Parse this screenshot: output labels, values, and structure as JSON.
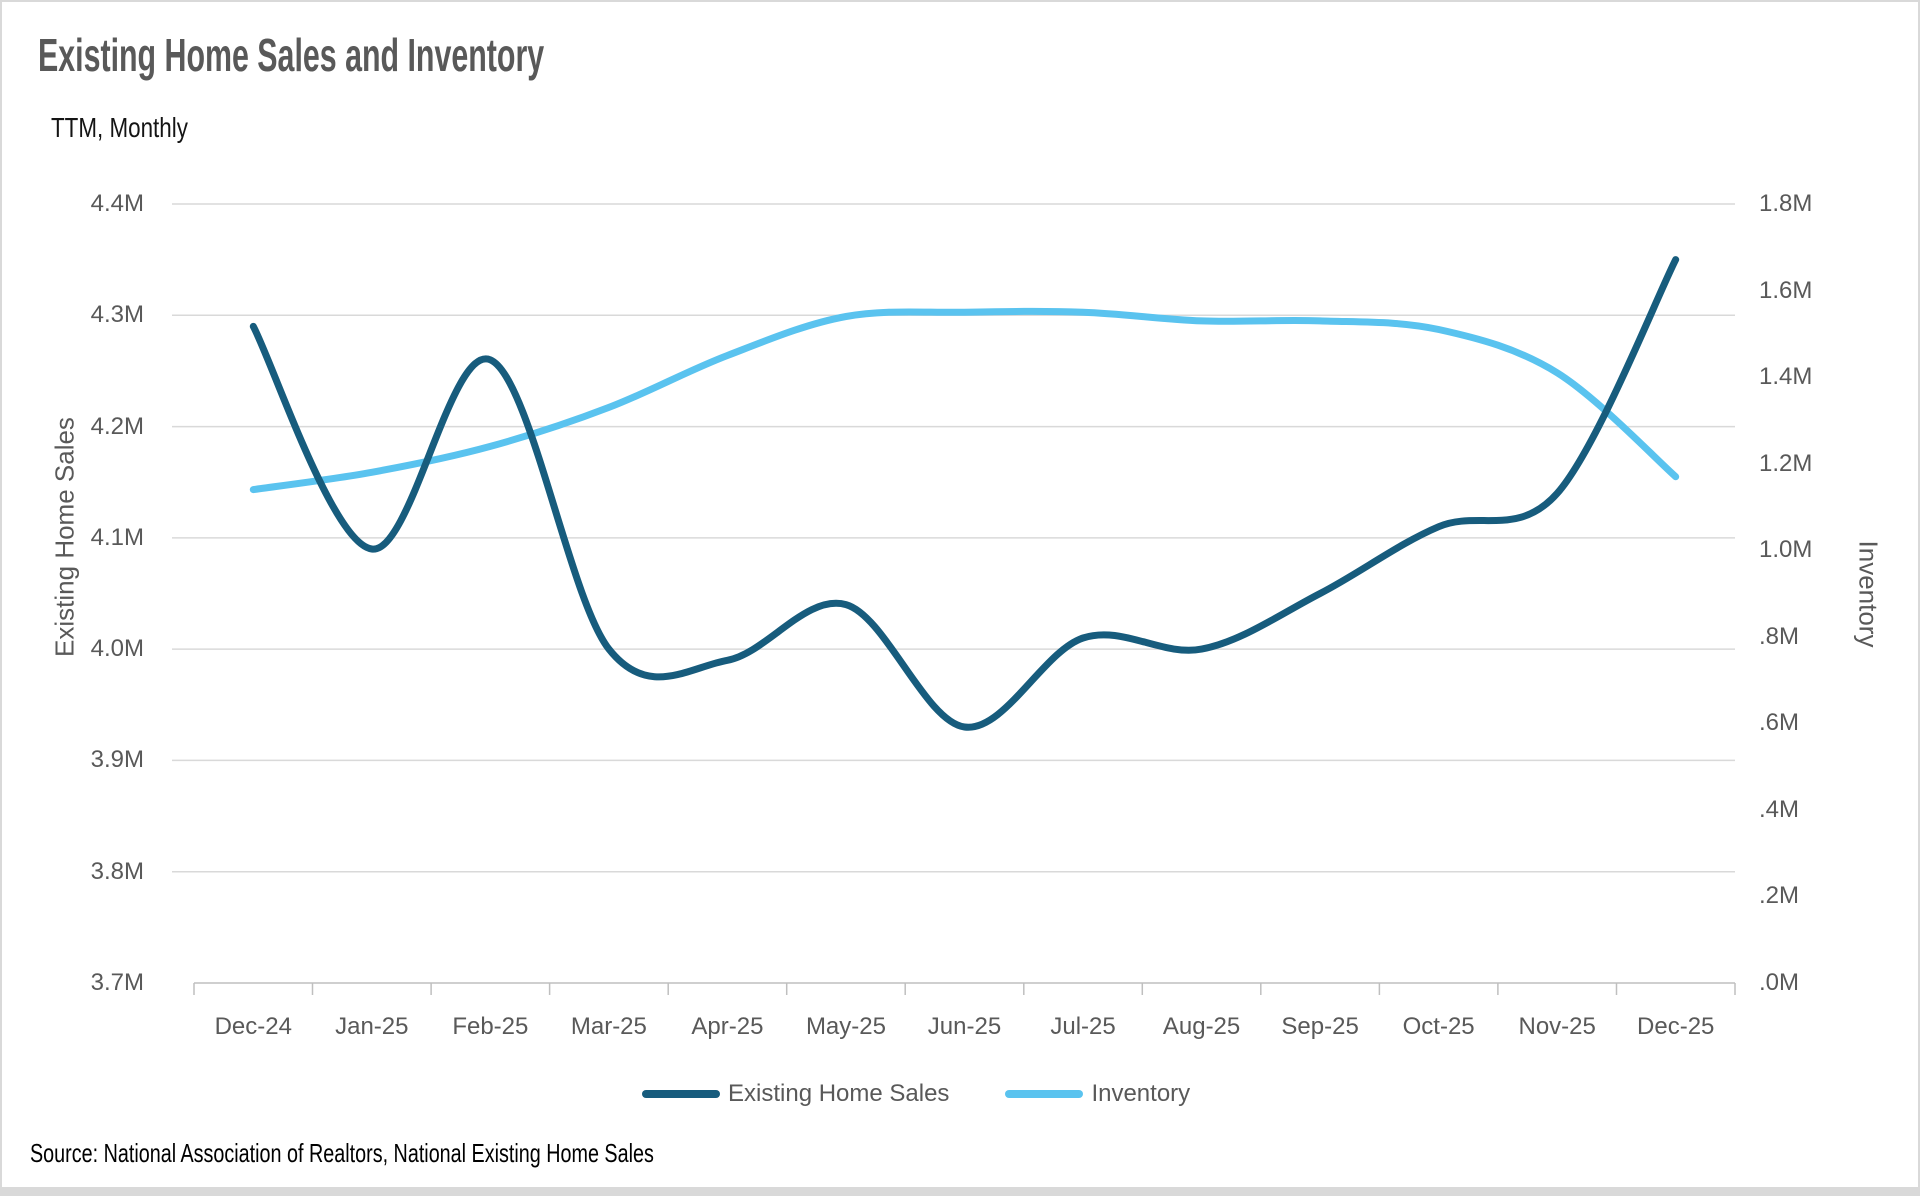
{
  "title": "Existing Home Sales and Inventory",
  "subtitle": "TTM, Monthly",
  "source_note": "Source: National Association of Realtors, National Existing Home Sales",
  "colors": {
    "sales_line": "#175C7D",
    "inventory_line": "#5AC3EF",
    "gridline": "#D9D9D9",
    "axis_line": "#BFBFBF",
    "title_text": "#595959",
    "label_text": "#595959",
    "body_text": "#000000"
  },
  "left_axis": {
    "title": "Existing Home Sales",
    "min": 3.7,
    "max": 4.4,
    "ticks": [
      {
        "label": "4.4M",
        "value": 4.4
      },
      {
        "label": "4.3M",
        "value": 4.3
      },
      {
        "label": "4.2M",
        "value": 4.2
      },
      {
        "label": "4.1M",
        "value": 4.1
      },
      {
        "label": "4.0M",
        "value": 4.0
      },
      {
        "label": "3.9M",
        "value": 3.9
      },
      {
        "label": "3.8M",
        "value": 3.8
      },
      {
        "label": "3.7M",
        "value": 3.7
      }
    ]
  },
  "right_axis": {
    "title": "Inventory",
    "min": 0.0,
    "max": 1.8,
    "ticks": [
      {
        "label": "1.8M",
        "value": 1.8
      },
      {
        "label": "1.6M",
        "value": 1.6
      },
      {
        "label": "1.4M",
        "value": 1.4
      },
      {
        "label": "1.2M",
        "value": 1.2
      },
      {
        "label": "1.0M",
        "value": 1.0
      },
      {
        "label": ".8M",
        "value": 0.8
      },
      {
        "label": ".6M",
        "value": 0.6
      },
      {
        "label": ".4M",
        "value": 0.4
      },
      {
        "label": ".2M",
        "value": 0.2
      },
      {
        "label": ".0M",
        "value": 0.0
      }
    ]
  },
  "legend": {
    "items": [
      {
        "label": "Existing Home Sales",
        "color_key": "sales_line"
      },
      {
        "label": "Inventory",
        "color_key": "inventory_line"
      }
    ]
  },
  "chart_data": {
    "type": "line",
    "smoothed": true,
    "grid": true,
    "legend_position": "bottom",
    "title": "Existing Home Sales and Inventory",
    "subtitle": "TTM, Monthly",
    "x": [
      "Dec-24",
      "Jan-25",
      "Feb-25",
      "Mar-25",
      "Apr-25",
      "May-25",
      "Jun-25",
      "Jul-25",
      "Aug-25",
      "Sep-25",
      "Oct-25",
      "Nov-25",
      "Dec-25"
    ],
    "left_ylabel": "Existing Home Sales",
    "right_ylabel": "Inventory",
    "left_ylim": [
      3.7,
      4.4
    ],
    "right_ylim": [
      0.0,
      1.8
    ],
    "series": [
      {
        "name": "Existing Home Sales",
        "axis": "left",
        "unit": "M",
        "values": [
          4.29,
          4.09,
          4.26,
          4.0,
          3.99,
          4.04,
          3.93,
          4.01,
          4.0,
          4.05,
          4.11,
          4.14,
          4.35
        ]
      },
      {
        "name": "Inventory",
        "axis": "right",
        "unit": "M",
        "values": [
          1.14,
          1.18,
          1.24,
          1.33,
          1.45,
          1.54,
          1.55,
          1.55,
          1.53,
          1.53,
          1.51,
          1.41,
          1.17
        ]
      }
    ]
  }
}
